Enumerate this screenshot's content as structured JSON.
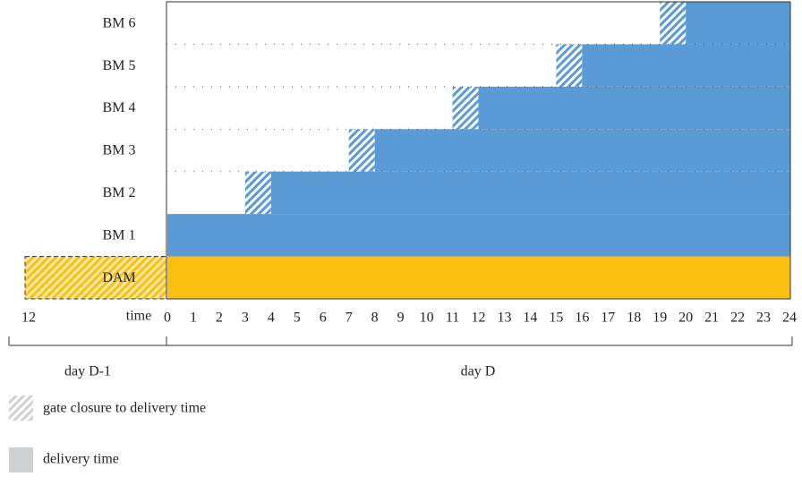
{
  "rows": [
    {
      "label": "BM 6",
      "gate_closure": 19,
      "delivery_start": 20
    },
    {
      "label": "BM 5",
      "gate_closure": 15,
      "delivery_start": 16
    },
    {
      "label": "BM 4",
      "gate_closure": 11,
      "delivery_start": 12
    },
    {
      "label": "BM 3",
      "gate_closure": 7,
      "delivery_start": 8
    },
    {
      "label": "BM 2",
      "gate_closure": 3,
      "delivery_start": 4
    },
    {
      "label": "BM 1",
      "delivery_start": 0
    },
    {
      "label": "DAM",
      "delivery_start": 0
    }
  ],
  "x_axis": {
    "label": "time",
    "previous_day_tick": 12,
    "ticks": [
      0,
      1,
      2,
      3,
      4,
      5,
      6,
      7,
      8,
      9,
      10,
      11,
      12,
      13,
      14,
      15,
      16,
      17,
      18,
      19,
      20,
      21,
      22,
      23,
      24
    ]
  },
  "days": [
    "day D-1",
    "day D"
  ],
  "legend": [
    "gate closure to delivery time",
    "delivery time"
  ]
}
